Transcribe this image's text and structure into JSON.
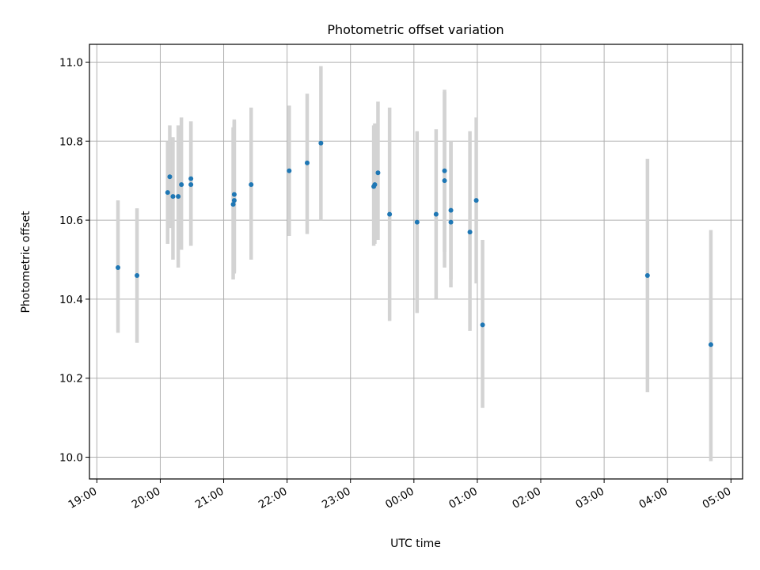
{
  "chart_data": {
    "type": "scatter",
    "title": "Photometric offset variation",
    "xlabel": "UTC time",
    "ylabel": "Photometric offset",
    "x_range": [
      "2023-01-01T18:53",
      "2023-01-02T05:11"
    ],
    "ylim": [
      9.945,
      11.045
    ],
    "grid": true,
    "x_tick_labels": [
      "19:00",
      "20:00",
      "21:00",
      "22:00",
      "23:00",
      "00:00",
      "01:00",
      "02:00",
      "03:00",
      "04:00",
      "05:00"
    ],
    "x_ticks": [
      "2023-01-01T19:00",
      "2023-01-01T20:00",
      "2023-01-01T21:00",
      "2023-01-01T22:00",
      "2023-01-01T23:00",
      "2023-01-02T00:00",
      "2023-01-02T01:00",
      "2023-01-02T02:00",
      "2023-01-02T03:00",
      "2023-01-02T04:00",
      "2023-01-02T05:00"
    ],
    "y_tick_labels": [
      "10.0",
      "10.2",
      "10.4",
      "10.6",
      "10.8",
      "11.0"
    ],
    "y_ticks": [
      10.0,
      10.2,
      10.4,
      10.6,
      10.8,
      11.0
    ],
    "colors": {
      "points": "#1f77b4",
      "error_bars": "#d3d3d3",
      "grid": "#b0b0b0"
    },
    "points": [
      {
        "x": "2023-01-01T19:20",
        "y": 10.48,
        "low": 10.315,
        "high": 10.65
      },
      {
        "x": "2023-01-01T19:38",
        "y": 10.46,
        "low": 10.29,
        "high": 10.63
      },
      {
        "x": "2023-01-01T20:07",
        "y": 10.67,
        "low": 10.54,
        "high": 10.8
      },
      {
        "x": "2023-01-01T20:09",
        "y": 10.71,
        "low": 10.58,
        "high": 10.84
      },
      {
        "x": "2023-01-01T20:12",
        "y": 10.66,
        "low": 10.5,
        "high": 10.81
      },
      {
        "x": "2023-01-01T20:17",
        "y": 10.66,
        "low": 10.48,
        "high": 10.84
      },
      {
        "x": "2023-01-01T20:20",
        "y": 10.69,
        "low": 10.525,
        "high": 10.86
      },
      {
        "x": "2023-01-01T20:29",
        "y": 10.705,
        "low": 10.535,
        "high": 10.85
      },
      {
        "x": "2023-01-01T20:29",
        "y": 10.69,
        "low": 10.535,
        "high": 10.85
      },
      {
        "x": "2023-01-01T21:09",
        "y": 10.64,
        "low": 10.45,
        "high": 10.835
      },
      {
        "x": "2023-01-01T21:10",
        "y": 10.65,
        "low": 10.465,
        "high": 10.855
      },
      {
        "x": "2023-01-01T21:10",
        "y": 10.665,
        "low": 10.47,
        "high": 10.85
      },
      {
        "x": "2023-01-01T21:26",
        "y": 10.69,
        "low": 10.5,
        "high": 10.885
      },
      {
        "x": "2023-01-01T22:02",
        "y": 10.725,
        "low": 10.56,
        "high": 10.89
      },
      {
        "x": "2023-01-01T22:19",
        "y": 10.745,
        "low": 10.565,
        "high": 10.92
      },
      {
        "x": "2023-01-01T22:32",
        "y": 10.795,
        "low": 10.6,
        "high": 10.99
      },
      {
        "x": "2023-01-01T23:22",
        "y": 10.685,
        "low": 10.535,
        "high": 10.84
      },
      {
        "x": "2023-01-01T23:23",
        "y": 10.69,
        "low": 10.54,
        "high": 10.845
      },
      {
        "x": "2023-01-01T23:26",
        "y": 10.72,
        "low": 10.55,
        "high": 10.9
      },
      {
        "x": "2023-01-01T23:37",
        "y": 10.615,
        "low": 10.345,
        "high": 10.885
      },
      {
        "x": "2023-01-02T00:03",
        "y": 10.595,
        "low": 10.365,
        "high": 10.825
      },
      {
        "x": "2023-01-02T00:21",
        "y": 10.615,
        "low": 10.4,
        "high": 10.83
      },
      {
        "x": "2023-01-02T00:29",
        "y": 10.725,
        "low": 10.52,
        "high": 10.925
      },
      {
        "x": "2023-01-02T00:29",
        "y": 10.7,
        "low": 10.48,
        "high": 10.93
      },
      {
        "x": "2023-01-02T00:35",
        "y": 10.595,
        "low": 10.43,
        "high": 10.8
      },
      {
        "x": "2023-01-02T00:35",
        "y": 10.625,
        "low": 10.45,
        "high": 10.8
      },
      {
        "x": "2023-01-02T00:53",
        "y": 10.57,
        "low": 10.32,
        "high": 10.825
      },
      {
        "x": "2023-01-02T00:59",
        "y": 10.65,
        "low": 10.44,
        "high": 10.86
      },
      {
        "x": "2023-01-02T01:05",
        "y": 10.335,
        "low": 10.125,
        "high": 10.55
      },
      {
        "x": "2023-01-02T03:41",
        "y": 10.46,
        "low": 10.165,
        "high": 10.755
      },
      {
        "x": "2023-01-02T04:41",
        "y": 10.285,
        "low": 9.99,
        "high": 10.575
      }
    ]
  }
}
